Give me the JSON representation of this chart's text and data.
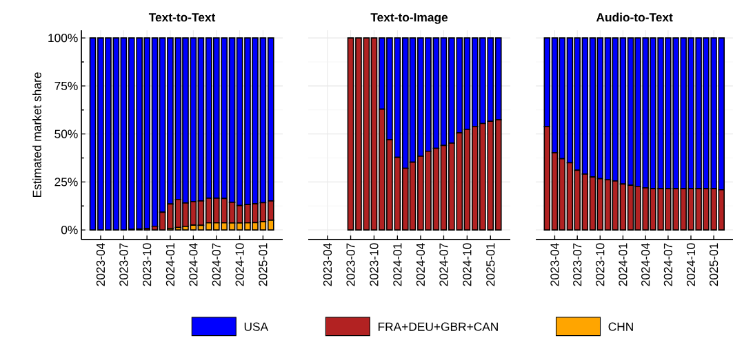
{
  "chart_data": [
    {
      "type": "bar",
      "stacked": true,
      "title": "Text-to-Text",
      "ylabel": "Estimated market share",
      "legend": "bottom",
      "grid": true,
      "x": [
        "2023-03",
        "2023-04",
        "2023-05",
        "2023-06",
        "2023-07",
        "2023-08",
        "2023-09",
        "2023-10",
        "2023-11",
        "2023-12",
        "2024-01",
        "2024-02",
        "2024-03",
        "2024-04",
        "2024-05",
        "2024-06",
        "2024-07",
        "2024-08",
        "2024-09",
        "2024-10",
        "2024-11",
        "2024-12",
        "2025-01",
        "2025-02"
      ],
      "xlim": [
        "2023-01-15",
        "2025-03-20"
      ],
      "ylim": [
        -5,
        104
      ],
      "xticks": [
        "2023-04",
        "2023-07",
        "2023-10",
        "2024-01",
        "2024-04",
        "2024-07",
        "2024-10",
        "2025-01"
      ],
      "yticks": [
        {
          "value": 0,
          "label": "0%"
        },
        {
          "value": 25,
          "label": "25%"
        },
        {
          "value": 50,
          "label": "50%"
        },
        {
          "value": 75,
          "label": "75%"
        },
        {
          "value": 100,
          "label": "100%"
        }
      ],
      "series": [
        {
          "name": "CHN",
          "color": "#ffa500",
          "values": [
            0,
            0,
            0,
            0,
            0,
            0,
            0,
            0,
            0,
            0,
            0.8,
            1.3,
            1.8,
            2.5,
            2.4,
            3.7,
            3.7,
            3.7,
            3.6,
            3.6,
            3.7,
            3.8,
            4.3,
            5.1
          ]
        },
        {
          "name": "FRA+DEU+GBR+CAN",
          "color": "#b22222",
          "values": [
            0,
            0,
            0,
            0,
            0,
            0.3,
            0.5,
            0.8,
            1.9,
            9.2,
            12.7,
            14.6,
            12.2,
            12.2,
            12.7,
            12.8,
            12.8,
            12.7,
            10.8,
            9.1,
            9.5,
            9.8,
            9.9,
            10.0
          ]
        },
        {
          "name": "USA",
          "color": "#0000ff",
          "values": [
            100,
            100,
            100,
            100,
            100,
            99.7,
            99.5,
            99.2,
            98.1,
            90.8,
            86.5,
            84.1,
            86.0,
            85.3,
            84.9,
            83.5,
            83.5,
            83.6,
            85.6,
            87.3,
            86.8,
            86.4,
            85.8,
            84.9
          ]
        }
      ]
    },
    {
      "type": "bar",
      "stacked": true,
      "title": "Text-to-Image",
      "grid": true,
      "tick_labels": "x",
      "x": [
        "2023-07",
        "2023-08",
        "2023-09",
        "2023-10",
        "2023-11",
        "2023-12",
        "2024-01",
        "2024-02",
        "2024-03",
        "2024-04",
        "2024-05",
        "2024-06",
        "2024-07",
        "2024-08",
        "2024-09",
        "2024-10",
        "2024-11",
        "2024-12",
        "2025-01",
        "2025-02"
      ],
      "xlim": [
        "2023-01-15",
        "2025-03-20"
      ],
      "ylim": [
        -5,
        104
      ],
      "xticks": [
        "2023-04",
        "2023-07",
        "2023-10",
        "2024-01",
        "2024-04",
        "2024-07",
        "2024-10",
        "2025-01"
      ],
      "yticks": [
        0,
        25,
        50,
        75,
        100
      ],
      "series": [
        {
          "color": "#b22222",
          "values": [
            100,
            100,
            100,
            100,
            62.9,
            47.0,
            37.8,
            32.1,
            35.3,
            38.4,
            41.0,
            42.5,
            44.0,
            45.2,
            50.6,
            52.4,
            53.9,
            55.4,
            56.6,
            57.4
          ]
        },
        {
          "color": "#0000ff",
          "values": [
            0,
            0,
            0,
            0,
            37.1,
            53.0,
            62.2,
            67.9,
            64.7,
            61.6,
            59.0,
            57.5,
            56.0,
            54.8,
            49.4,
            47.6,
            46.1,
            44.6,
            43.4,
            42.6
          ]
        }
      ]
    },
    {
      "type": "bar",
      "stacked": true,
      "title": "Audio-to-Text",
      "grid": true,
      "tick_labels": "x",
      "x": [
        "2023-03",
        "2023-04",
        "2023-05",
        "2023-06",
        "2023-07",
        "2023-08",
        "2023-09",
        "2023-10",
        "2023-11",
        "2023-12",
        "2024-01",
        "2024-02",
        "2024-03",
        "2024-04",
        "2024-05",
        "2024-06",
        "2024-07",
        "2024-08",
        "2024-09",
        "2024-10",
        "2024-11",
        "2024-12",
        "2025-01",
        "2025-02"
      ],
      "xlim": [
        "2023-01-15",
        "2025-03-20"
      ],
      "ylim": [
        -5,
        104
      ],
      "xticks": [
        "2023-04",
        "2023-07",
        "2023-10",
        "2024-01",
        "2024-04",
        "2024-07",
        "2024-10",
        "2025-01"
      ],
      "yticks": [
        0,
        25,
        50,
        75,
        100
      ],
      "series": [
        {
          "color": "#b22222",
          "values": [
            53.9,
            40.2,
            37.1,
            35.0,
            31.1,
            29.1,
            27.6,
            26.7,
            26.1,
            25.5,
            23.9,
            23.3,
            22.7,
            21.9,
            21.5,
            21.5,
            21.5,
            21.5,
            21.5,
            21.5,
            21.5,
            21.5,
            21.5,
            20.9
          ]
        },
        {
          "color": "#0000ff",
          "values": [
            46.1,
            59.8,
            62.9,
            65.0,
            68.9,
            70.9,
            72.4,
            73.3,
            73.9,
            74.5,
            76.1,
            76.7,
            77.3,
            78.1,
            78.5,
            78.5,
            78.5,
            78.5,
            78.5,
            78.5,
            78.5,
            78.5,
            78.5,
            79.1
          ]
        }
      ]
    }
  ]
}
